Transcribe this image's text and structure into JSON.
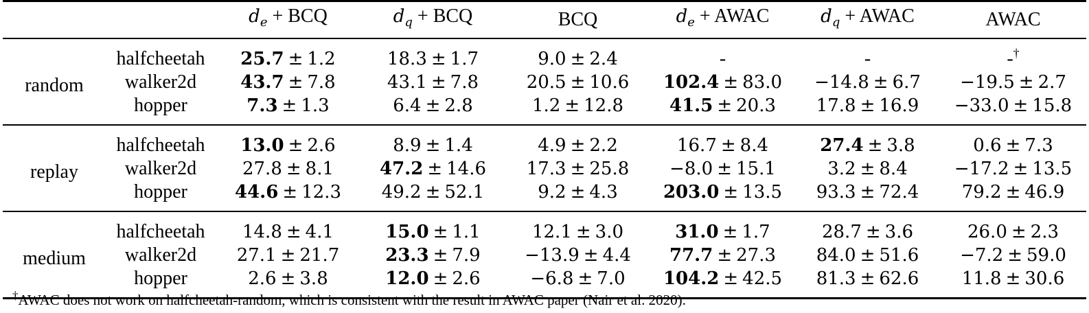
{
  "columns": [
    {
      "prefix": "d",
      "sub": "e",
      "label": "+ BCQ"
    },
    {
      "prefix": "d",
      "sub": "q",
      "label": "+ BCQ"
    },
    {
      "prefix": "",
      "sub": "",
      "label": "BCQ"
    },
    {
      "prefix": "d",
      "sub": "e",
      "label": "+ AWAC"
    },
    {
      "prefix": "d",
      "sub": "q",
      "label": "+ AWAC"
    },
    {
      "prefix": "",
      "sub": "",
      "label": "AWAC"
    }
  ],
  "groups": [
    {
      "name": "random",
      "rows": [
        {
          "env": "halfcheetah",
          "cells": [
            {
              "mean": "25.7",
              "std": "1.2",
              "best": true
            },
            {
              "mean": "18.3",
              "std": "1.7",
              "best": false
            },
            {
              "mean": "9.0",
              "std": "2.4",
              "best": false
            },
            {
              "dash": "-"
            },
            {
              "dash": "-"
            },
            {
              "dash": "-",
              "dagger": "†"
            }
          ]
        },
        {
          "env": "walker2d",
          "cells": [
            {
              "mean": "43.7",
              "std": "7.8",
              "best": true
            },
            {
              "mean": "43.1",
              "std": "7.8",
              "best": false
            },
            {
              "mean": "20.5",
              "std": "10.6",
              "best": false
            },
            {
              "mean": "102.4",
              "std": "83.0",
              "best": true
            },
            {
              "mean": "−14.8",
              "std": "6.7",
              "best": false
            },
            {
              "mean": "−19.5",
              "std": "2.7",
              "best": false
            }
          ]
        },
        {
          "env": "hopper",
          "cells": [
            {
              "mean": "7.3",
              "std": "1.3",
              "best": true
            },
            {
              "mean": "6.4",
              "std": "2.8",
              "best": false
            },
            {
              "mean": "1.2",
              "std": "12.8",
              "best": false
            },
            {
              "mean": "41.5",
              "std": "20.3",
              "best": true
            },
            {
              "mean": "17.8",
              "std": "16.9",
              "best": false
            },
            {
              "mean": "−33.0",
              "std": "15.8",
              "best": false
            }
          ]
        }
      ]
    },
    {
      "name": "replay",
      "rows": [
        {
          "env": "halfcheetah",
          "cells": [
            {
              "mean": "13.0",
              "std": "2.6",
              "best": true
            },
            {
              "mean": "8.9",
              "std": "1.4",
              "best": false
            },
            {
              "mean": "4.9",
              "std": "2.2",
              "best": false
            },
            {
              "mean": "16.7",
              "std": "8.4",
              "best": false
            },
            {
              "mean": "27.4",
              "std": "3.8",
              "best": true
            },
            {
              "mean": "0.6",
              "std": "7.3",
              "best": false
            }
          ]
        },
        {
          "env": "walker2d",
          "cells": [
            {
              "mean": "27.8",
              "std": "8.1",
              "best": false
            },
            {
              "mean": "47.2",
              "std": "14.6",
              "best": true
            },
            {
              "mean": "17.3",
              "std": "25.8",
              "best": false
            },
            {
              "mean": "−8.0",
              "std": "15.1",
              "best": false
            },
            {
              "mean": "3.2",
              "std": "8.4",
              "best": false
            },
            {
              "mean": "−17.2",
              "std": "13.5",
              "best": false
            }
          ]
        },
        {
          "env": "hopper",
          "cells": [
            {
              "mean": "44.6",
              "std": "12.3",
              "best": true
            },
            {
              "mean": "49.2",
              "std": "52.1",
              "best": false
            },
            {
              "mean": "9.2",
              "std": "4.3",
              "best": false
            },
            {
              "mean": "203.0",
              "std": "13.5",
              "best": true
            },
            {
              "mean": "93.3",
              "std": "72.4",
              "best": false
            },
            {
              "mean": "79.2",
              "std": "46.9",
              "best": false
            }
          ]
        }
      ]
    },
    {
      "name": "medium",
      "rows": [
        {
          "env": "halfcheetah",
          "cells": [
            {
              "mean": "14.8",
              "std": "4.1",
              "best": false
            },
            {
              "mean": "15.0",
              "std": "1.1",
              "best": true
            },
            {
              "mean": "12.1",
              "std": "3.0",
              "best": false
            },
            {
              "mean": "31.0",
              "std": "1.7",
              "best": true
            },
            {
              "mean": "28.7",
              "std": "3.6",
              "best": false
            },
            {
              "mean": "26.0",
              "std": "2.3",
              "best": false
            }
          ]
        },
        {
          "env": "walker2d",
          "cells": [
            {
              "mean": "27.1",
              "std": "21.7",
              "best": false
            },
            {
              "mean": "23.3",
              "std": "7.9",
              "best": true
            },
            {
              "mean": "−13.9",
              "std": "4.4",
              "best": false
            },
            {
              "mean": "77.7",
              "std": "27.3",
              "best": true
            },
            {
              "mean": "84.0",
              "std": "51.6",
              "best": false
            },
            {
              "mean": "−7.2",
              "std": "59.0",
              "best": false
            }
          ]
        },
        {
          "env": "hopper",
          "cells": [
            {
              "mean": "2.6",
              "std": "3.8",
              "best": false
            },
            {
              "mean": "12.0",
              "std": "2.6",
              "best": true
            },
            {
              "mean": "−6.8",
              "std": "7.0",
              "best": false
            },
            {
              "mean": "104.2",
              "std": "42.5",
              "best": true
            },
            {
              "mean": "81.3",
              "std": "62.6",
              "best": false
            },
            {
              "mean": "11.8",
              "std": "30.6",
              "best": false
            }
          ]
        }
      ]
    }
  ],
  "footnote": {
    "mark": "†",
    "text": "AWAC does not work on halfcheetah-random, which is consistent with the result in AWAC paper (Nair et al. 2020)."
  }
}
